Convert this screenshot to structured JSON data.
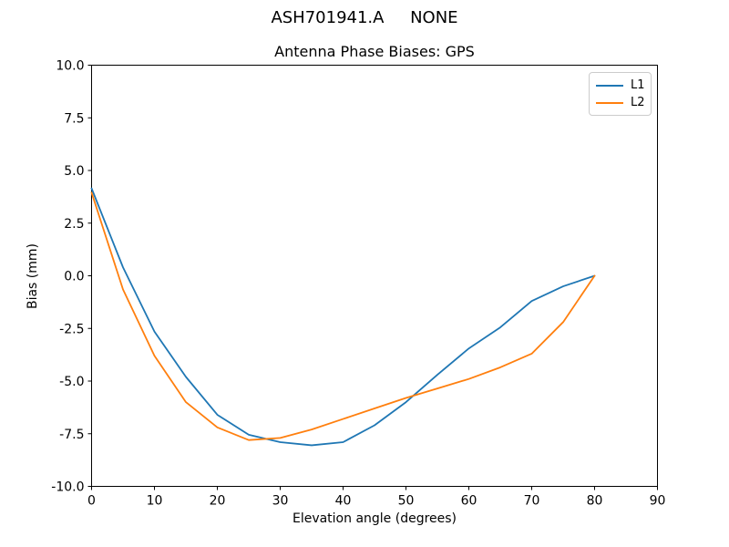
{
  "figure": {
    "suptitle": "ASH701941.A     NONE"
  },
  "chart_data": {
    "type": "line",
    "title": "Antenna Phase Biases: GPS",
    "xlabel": "Elevation angle (degrees)",
    "ylabel": "Bias (mm)",
    "xlim": [
      0,
      90
    ],
    "ylim": [
      -10,
      10
    ],
    "xticks": [
      0,
      10,
      20,
      30,
      40,
      50,
      60,
      70,
      80,
      90
    ],
    "xtick_labels": [
      "0",
      "10",
      "20",
      "30",
      "40",
      "50",
      "60",
      "70",
      "80",
      "90"
    ],
    "yticks": [
      -10,
      -7.5,
      -5,
      -2.5,
      0,
      2.5,
      5,
      7.5,
      10
    ],
    "ytick_labels": [
      "-10.0",
      "-7.5",
      "-5.0",
      "-2.5",
      "0.0",
      "2.5",
      "5.0",
      "7.5",
      "10.0"
    ],
    "grid": false,
    "legend_position": "upper right",
    "frame_color": "#000000",
    "x": [
      0,
      5,
      10,
      15,
      20,
      25,
      30,
      35,
      40,
      45,
      50,
      55,
      60,
      65,
      70,
      75,
      80
    ],
    "series": [
      {
        "name": "L1",
        "color": "#1f77b4",
        "values": [
          4.15,
          0.4,
          -2.65,
          -4.8,
          -6.6,
          -7.55,
          -7.9,
          -8.05,
          -7.9,
          -7.1,
          -6.0,
          -4.7,
          -3.45,
          -2.45,
          -1.2,
          -0.5,
          0.0
        ]
      },
      {
        "name": "L2",
        "color": "#ff7f0e",
        "values": [
          3.95,
          -0.65,
          -3.8,
          -6.0,
          -7.2,
          -7.8,
          -7.7,
          -7.3,
          -6.8,
          -6.3,
          -5.8,
          -5.35,
          -4.9,
          -4.35,
          -3.7,
          -2.2,
          0.0
        ]
      }
    ]
  }
}
